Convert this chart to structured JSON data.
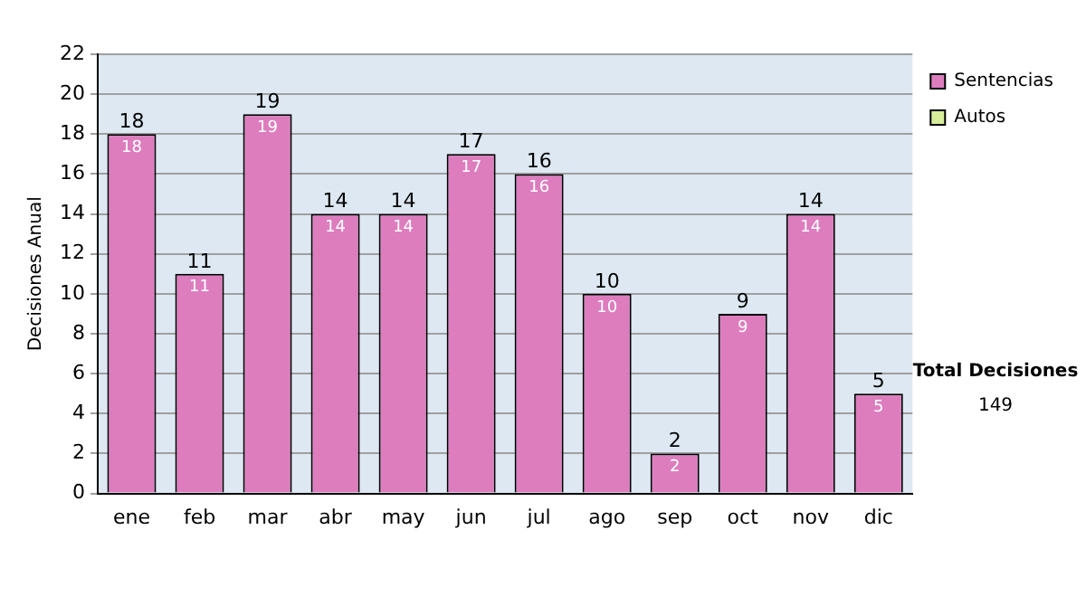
{
  "chart_data": {
    "type": "bar",
    "stacked": true,
    "ylabel": "Decisiones Anual",
    "categories": [
      "ene",
      "feb",
      "mar",
      "abr",
      "may",
      "jun",
      "jul",
      "ago",
      "sep",
      "oct",
      "nov",
      "dic"
    ],
    "series": [
      {
        "name": "Sentencias",
        "color": "#dd7dbe",
        "values": [
          18,
          11,
          19,
          14,
          14,
          17,
          16,
          10,
          2,
          9,
          14,
          5
        ],
        "value_labels": [
          "18",
          "11",
          "19",
          "14",
          "14",
          "17",
          "16",
          "10",
          "2",
          "9",
          "14",
          "5"
        ]
      },
      {
        "name": "Autos",
        "color": "#d6ee9a",
        "values": [
          0,
          0,
          0,
          0,
          0,
          0,
          0,
          0,
          0,
          0,
          0,
          0
        ]
      }
    ],
    "totals": [
      "18",
      "11",
      "19",
      "14",
      "14",
      "17",
      "16",
      "10",
      "2",
      "9",
      "14",
      "5"
    ],
    "ylim": [
      0,
      22
    ],
    "yticks": [
      0,
      2,
      4,
      6,
      8,
      10,
      12,
      14,
      16,
      18,
      20,
      22
    ],
    "grid": "y",
    "legend": "right",
    "annotations": [
      "Total Decisiones",
      "149"
    ]
  }
}
